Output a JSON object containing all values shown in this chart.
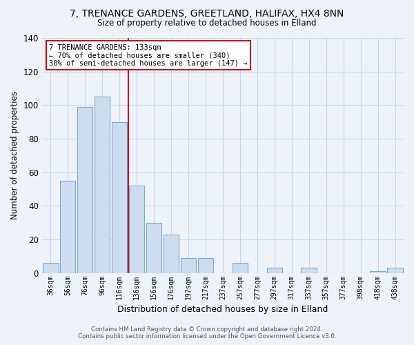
{
  "title": "7, TRENANCE GARDENS, GREETLAND, HALIFAX, HX4 8NN",
  "subtitle": "Size of property relative to detached houses in Elland",
  "xlabel": "Distribution of detached houses by size in Elland",
  "ylabel": "Number of detached properties",
  "bar_labels": [
    "36sqm",
    "56sqm",
    "76sqm",
    "96sqm",
    "116sqm",
    "136sqm",
    "156sqm",
    "176sqm",
    "197sqm",
    "217sqm",
    "237sqm",
    "257sqm",
    "277sqm",
    "297sqm",
    "317sqm",
    "337sqm",
    "357sqm",
    "377sqm",
    "398sqm",
    "418sqm",
    "438sqm"
  ],
  "bar_values": [
    6,
    55,
    99,
    105,
    90,
    52,
    30,
    23,
    9,
    9,
    0,
    6,
    0,
    3,
    0,
    3,
    0,
    0,
    0,
    1,
    3
  ],
  "bar_color": "#ccddf0",
  "bar_edge_color": "#7aaad0",
  "vline_x": 4.5,
  "vline_color": "#cc0000",
  "annotation_title": "7 TRENANCE GARDENS: 133sqm",
  "annotation_line1": "← 70% of detached houses are smaller (340)",
  "annotation_line2": "30% of semi-detached houses are larger (147) →",
  "annotation_box_color": "#ffffff",
  "annotation_box_edge": "#cc0000",
  "ylim": [
    0,
    140
  ],
  "yticks": [
    0,
    20,
    40,
    60,
    80,
    100,
    120,
    140
  ],
  "footer1": "Contains HM Land Registry data © Crown copyright and database right 2024.",
  "footer2": "Contains public sector information licensed under the Open Government Licence v3.0.",
  "grid_color": "#c8d8e8",
  "background_color": "#eef3fa"
}
